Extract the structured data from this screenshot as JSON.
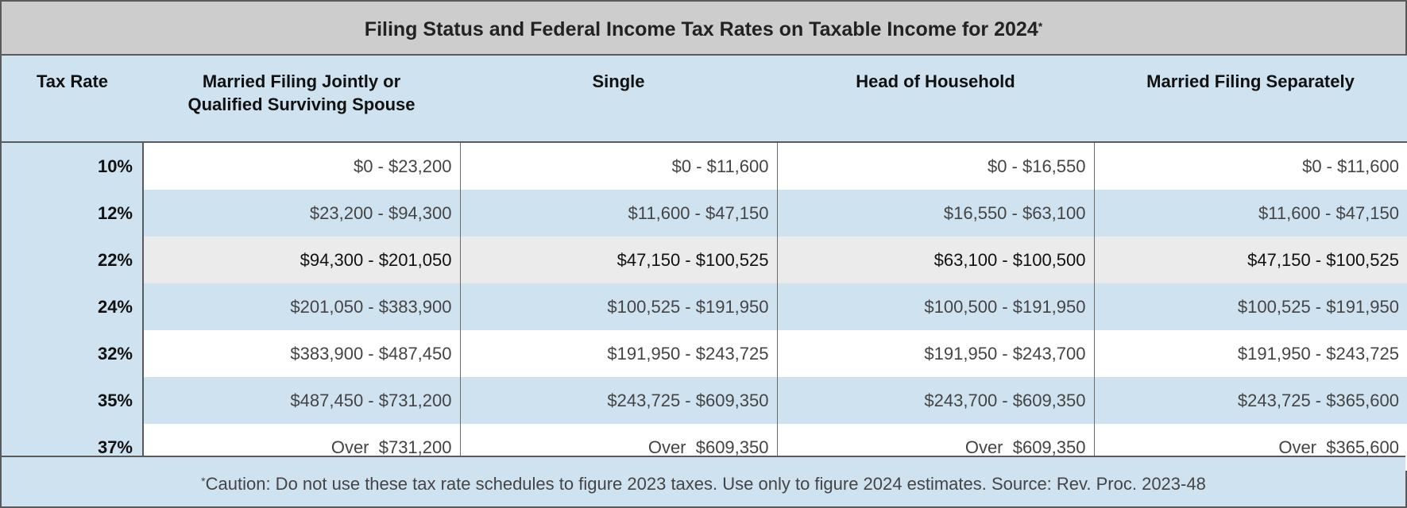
{
  "title": {
    "text": "Filing Status and Federal Income Tax Rates on Taxable Income for 2024",
    "marker": "*"
  },
  "headers": [
    "Tax Rate",
    "Married Filing Jointly or\nQualified Surviving Spouse",
    "Single",
    "Head of Household",
    "Married Filing Separately"
  ],
  "rows": [
    {
      "rate": "10%",
      "style": "white",
      "values": [
        "$0 - $23,200",
        "$0 - $11,600",
        "$0 - $16,550",
        "$0 - $11,600"
      ]
    },
    {
      "rate": "12%",
      "style": "blue",
      "values": [
        "$23,200 - $94,300",
        "$11,600 - $47,150",
        "$16,550 - $63,100",
        "$11,600 - $47,150"
      ]
    },
    {
      "rate": "22%",
      "style": "gray",
      "values": [
        "$94,300 - $201,050",
        "$47,150 - $100,525",
        "$63,100 - $100,500",
        "$47,150 - $100,525"
      ]
    },
    {
      "rate": "24%",
      "style": "blue",
      "values": [
        "$201,050 - $383,900",
        "$100,525 - $191,950",
        "$100,500 - $191,950",
        "$100,525 - $191,950"
      ]
    },
    {
      "rate": "32%",
      "style": "white",
      "values": [
        "$383,900 - $487,450",
        "$191,950 - $243,725",
        "$191,950 - $243,700",
        "$191,950 - $243,725"
      ]
    },
    {
      "rate": "35%",
      "style": "blue",
      "values": [
        "$487,450 - $731,200",
        "$243,725 - $609,350",
        "$243,700 - $609,350",
        "$243,725 - $365,600"
      ]
    },
    {
      "rate": "37%",
      "style": "white",
      "values": [
        "Over  $731,200",
        "Over  $609,350",
        "Over  $609,350",
        "Over  $365,600"
      ]
    }
  ],
  "footer": {
    "marker": "*",
    "text": "Caution: Do not use these tax rate schedules to figure 2023 taxes. Use only to figure 2024 estimates. Source: Rev. Proc. 2023-48"
  },
  "colors": {
    "header_bg": "#cdcdcd",
    "blue_band": "#cfe2f0",
    "gray_band": "#ebebeb",
    "border": "#5a5a5a"
  }
}
